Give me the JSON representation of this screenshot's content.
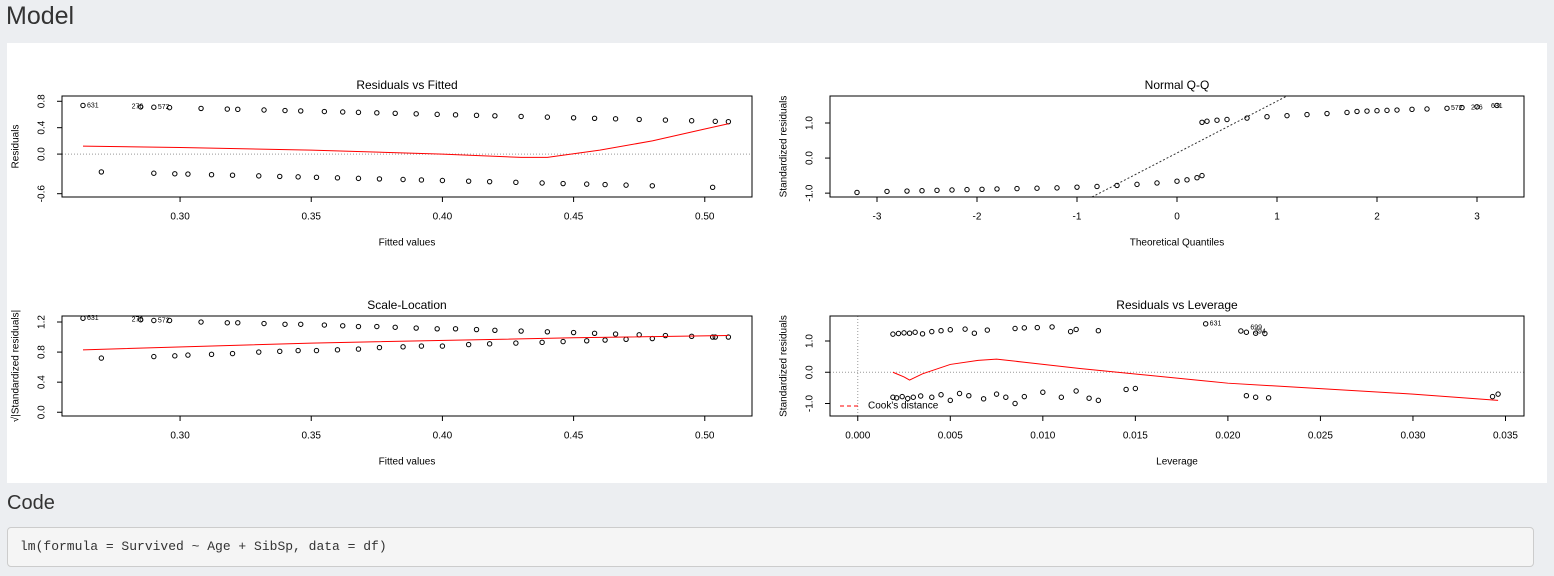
{
  "header": {
    "title": "Model"
  },
  "code_section": {
    "title": "Code",
    "code": "lm(formula = Survived ~ Age + SibSp, data = df)"
  },
  "chart_data": [
    {
      "type": "scatter",
      "title": "Residuals vs Fitted",
      "xlabel": "Fitted values",
      "ylabel": "Residuals",
      "xlim": [
        0.255,
        0.518
      ],
      "ylim": [
        -0.65,
        0.88
      ],
      "xticks": [
        {
          "value": 0.3,
          "label": "0.30"
        },
        {
          "value": 0.35,
          "label": "0.35"
        },
        {
          "value": 0.4,
          "label": "0.40"
        },
        {
          "value": 0.45,
          "label": "0.45"
        },
        {
          "value": 0.5,
          "label": "0.50"
        }
      ],
      "yticks": [
        -0.6,
        {
          "value": 0,
          "label": "0.0"
        },
        0.4,
        0.8
      ],
      "point_color": "#000000",
      "points": {
        "x": [
          0.263,
          0.285,
          0.29,
          0.296,
          0.308,
          0.318,
          0.322,
          0.332,
          0.34,
          0.346,
          0.355,
          0.362,
          0.368,
          0.375,
          0.382,
          0.39,
          0.398,
          0.405,
          0.413,
          0.42,
          0.43,
          0.44,
          0.45,
          0.458,
          0.466,
          0.475,
          0.485,
          0.495,
          0.504,
          0.509,
          0.27,
          0.29,
          0.298,
          0.303,
          0.312,
          0.32,
          0.33,
          0.338,
          0.345,
          0.352,
          0.36,
          0.368,
          0.376,
          0.385,
          0.392,
          0.4,
          0.41,
          0.418,
          0.428,
          0.438,
          0.446,
          0.455,
          0.462,
          0.47,
          0.48,
          0.503
        ],
        "y": [
          0.737,
          0.715,
          0.71,
          0.704,
          0.692,
          0.682,
          0.678,
          0.668,
          0.66,
          0.654,
          0.645,
          0.638,
          0.632,
          0.625,
          0.618,
          0.61,
          0.602,
          0.595,
          0.587,
          0.58,
          0.57,
          0.56,
          0.55,
          0.542,
          0.534,
          0.525,
          0.515,
          0.505,
          0.496,
          0.491,
          -0.27,
          -0.29,
          -0.298,
          -0.303,
          -0.312,
          -0.32,
          -0.33,
          -0.338,
          -0.345,
          -0.352,
          -0.36,
          -0.368,
          -0.376,
          -0.385,
          -0.392,
          -0.4,
          -0.41,
          -0.418,
          -0.428,
          -0.438,
          -0.446,
          -0.455,
          -0.462,
          -0.47,
          -0.48,
          -0.503
        ]
      },
      "smooth": {
        "color": "#ff0000",
        "x": [
          0.263,
          0.3,
          0.35,
          0.4,
          0.43,
          0.44,
          0.46,
          0.48,
          0.5,
          0.509
        ],
        "y": [
          0.12,
          0.1,
          0.06,
          0.0,
          -0.05,
          -0.05,
          0.06,
          0.2,
          0.38,
          0.46
        ]
      },
      "hline": 0,
      "annotations": [
        {
          "label": "631",
          "x": 0.263,
          "y": 0.737
        },
        {
          "label": "276",
          "x": 0.28,
          "y": 0.715
        },
        {
          "label": "572",
          "x": 0.29,
          "y": 0.71
        }
      ]
    },
    {
      "type": "scatter",
      "title": "Normal Q-Q",
      "xlabel": "Theoretical Quantiles",
      "ylabel": "Standardized residuals",
      "xlim": [
        -3.47,
        3.47
      ],
      "ylim": [
        -1.11,
        1.77
      ],
      "xticks": [
        -3,
        -2,
        -1,
        0,
        1,
        2,
        3
      ],
      "yticks": [
        {
          "value": -1,
          "label": "-1.0"
        },
        {
          "value": 0,
          "label": "0.0"
        },
        {
          "value": 1,
          "label": "1.0"
        }
      ],
      "point_color": "#000000",
      "points": {
        "x": [
          -3.2,
          -2.9,
          -2.7,
          -2.55,
          -2.4,
          -2.25,
          -2.1,
          -1.95,
          -1.8,
          -1.6,
          -1.4,
          -1.2,
          -1.0,
          -0.8,
          -0.6,
          -0.4,
          -0.2,
          0.0,
          0.1,
          0.2,
          0.25,
          0.25,
          0.3,
          0.4,
          0.5,
          0.7,
          0.9,
          1.1,
          1.3,
          1.5,
          1.7,
          1.8,
          1.9,
          2.0,
          2.1,
          2.2,
          2.35,
          2.5,
          2.7,
          2.85,
          3.0,
          3.2
        ],
        "y": [
          -0.98,
          -0.95,
          -0.94,
          -0.93,
          -0.92,
          -0.91,
          -0.9,
          -0.89,
          -0.88,
          -0.87,
          -0.86,
          -0.85,
          -0.83,
          -0.81,
          -0.78,
          -0.75,
          -0.71,
          -0.66,
          -0.62,
          -0.56,
          -0.5,
          1.02,
          1.05,
          1.08,
          1.1,
          1.14,
          1.18,
          1.21,
          1.24,
          1.27,
          1.3,
          1.33,
          1.34,
          1.35,
          1.36,
          1.37,
          1.39,
          1.4,
          1.42,
          1.44,
          1.46,
          1.5
        ]
      },
      "reference_line": {
        "x": [
          -0.85,
          1.1
        ],
        "y": [
          -1.11,
          1.77
        ]
      },
      "annotations": [
        {
          "label": "572",
          "x": 2.7,
          "y": 1.42
        },
        {
          "label": "276",
          "x": 2.9,
          "y": 1.44
        },
        {
          "label": "631",
          "x": 3.1,
          "y": 1.48
        }
      ]
    },
    {
      "type": "scatter",
      "title": "Scale-Location",
      "xlabel": "Fitted values",
      "ylabel": "√|Standardized residuals|",
      "xlim": [
        0.255,
        0.518
      ],
      "ylim": [
        -0.05,
        1.28
      ],
      "xticks": [
        {
          "value": 0.3,
          "label": "0.30"
        },
        {
          "value": 0.35,
          "label": "0.35"
        },
        {
          "value": 0.4,
          "label": "0.40"
        },
        {
          "value": 0.45,
          "label": "0.45"
        },
        {
          "value": 0.5,
          "label": "0.50"
        }
      ],
      "yticks": [
        {
          "value": 0,
          "label": "0.0"
        },
        0.4,
        0.8,
        1.2
      ],
      "point_color": "#000000",
      "points": {
        "x": [
          0.263,
          0.285,
          0.29,
          0.296,
          0.308,
          0.318,
          0.322,
          0.332,
          0.34,
          0.346,
          0.355,
          0.362,
          0.368,
          0.375,
          0.382,
          0.39,
          0.398,
          0.405,
          0.413,
          0.42,
          0.43,
          0.44,
          0.45,
          0.458,
          0.466,
          0.475,
          0.485,
          0.495,
          0.504,
          0.509,
          0.27,
          0.29,
          0.298,
          0.303,
          0.312,
          0.32,
          0.33,
          0.338,
          0.345,
          0.352,
          0.36,
          0.368,
          0.376,
          0.385,
          0.392,
          0.4,
          0.41,
          0.418,
          0.428,
          0.438,
          0.446,
          0.455,
          0.462,
          0.47,
          0.48,
          0.503
        ],
        "y": [
          1.25,
          1.23,
          1.22,
          1.22,
          1.2,
          1.19,
          1.19,
          1.18,
          1.17,
          1.17,
          1.16,
          1.15,
          1.14,
          1.14,
          1.13,
          1.12,
          1.11,
          1.11,
          1.1,
          1.09,
          1.08,
          1.07,
          1.06,
          1.05,
          1.04,
          1.03,
          1.02,
          1.01,
          1.0,
          1.0,
          0.72,
          0.74,
          0.75,
          0.76,
          0.77,
          0.78,
          0.8,
          0.81,
          0.82,
          0.82,
          0.83,
          0.84,
          0.86,
          0.87,
          0.88,
          0.88,
          0.9,
          0.91,
          0.92,
          0.93,
          0.94,
          0.95,
          0.96,
          0.97,
          0.98,
          1.0
        ]
      },
      "smooth": {
        "color": "#ff0000",
        "x": [
          0.263,
          0.35,
          0.45,
          0.509
        ],
        "y": [
          0.83,
          0.92,
          0.99,
          1.02
        ]
      },
      "annotations": [
        {
          "label": "631",
          "x": 0.263,
          "y": 1.25
        },
        {
          "label": "276",
          "x": 0.28,
          "y": 1.23
        },
        {
          "label": "572",
          "x": 0.29,
          "y": 1.22
        }
      ]
    },
    {
      "type": "scatter",
      "title": "Residuals vs Leverage",
      "xlabel": "Leverage",
      "ylabel": "Standardized residuals",
      "xlim": [
        -0.0015,
        0.036
      ],
      "ylim": [
        -1.4,
        1.8
      ],
      "xticks": [
        {
          "value": 0,
          "label": "0.000"
        },
        0.005,
        {
          "value": 0.01,
          "label": "0.010"
        },
        0.015,
        {
          "value": 0.02,
          "label": "0.020"
        },
        0.025,
        {
          "value": 0.03,
          "label": "0.030"
        },
        0.035
      ],
      "yticks": [
        {
          "value": -1,
          "label": "-1.0"
        },
        {
          "value": 0,
          "label": "0.0"
        },
        {
          "value": 1,
          "label": "1.0"
        }
      ],
      "point_color": "#000000",
      "points": {
        "x": [
          0.0019,
          0.0022,
          0.0025,
          0.0028,
          0.0031,
          0.0035,
          0.004,
          0.0045,
          0.005,
          0.0058,
          0.0063,
          0.007,
          0.0085,
          0.009,
          0.0097,
          0.0105,
          0.0115,
          0.0118,
          0.013,
          0.0188,
          0.0207,
          0.021,
          0.0215,
          0.022,
          0.0019,
          0.0021,
          0.0024,
          0.0027,
          0.003,
          0.0034,
          0.004,
          0.0045,
          0.005,
          0.0055,
          0.006,
          0.0068,
          0.0075,
          0.008,
          0.0085,
          0.009,
          0.01,
          0.011,
          0.0118,
          0.0125,
          0.013,
          0.0145,
          0.015,
          0.021,
          0.0215,
          0.0222,
          0.0343,
          0.0346
        ],
        "y": [
          1.22,
          1.24,
          1.26,
          1.25,
          1.28,
          1.23,
          1.3,
          1.33,
          1.36,
          1.38,
          1.25,
          1.35,
          1.4,
          1.42,
          1.43,
          1.45,
          1.3,
          1.37,
          1.33,
          1.55,
          1.32,
          1.28,
          1.25,
          1.24,
          -0.8,
          -0.82,
          -0.78,
          -0.84,
          -0.8,
          -0.76,
          -0.8,
          -0.72,
          -0.9,
          -0.68,
          -0.75,
          -0.85,
          -0.7,
          -0.8,
          -1.0,
          -0.78,
          -0.64,
          -0.8,
          -0.6,
          -0.83,
          -0.9,
          -0.55,
          -0.52,
          -0.75,
          -0.8,
          -0.82,
          -0.78,
          -0.7
        ]
      },
      "smooth": {
        "color": "#ff0000",
        "x": [
          0.0019,
          0.0025,
          0.0028,
          0.0035,
          0.005,
          0.0065,
          0.0075,
          0.009,
          0.012,
          0.02,
          0.03,
          0.0346
        ],
        "y": [
          0.0,
          -0.15,
          -0.25,
          -0.05,
          0.25,
          0.38,
          0.42,
          0.32,
          0.12,
          -0.35,
          -0.7,
          -0.9
        ]
      },
      "hline": 0,
      "vline": 0,
      "annotations": [
        {
          "label": "631",
          "x": 0.0188,
          "y": 1.55
        },
        {
          "label": "699",
          "x": 0.021,
          "y": 1.42
        },
        {
          "label": "394",
          "x": 0.0212,
          "y": 1.3
        }
      ],
      "legend": {
        "position": "bottomleft",
        "entries": [
          {
            "label": "Cook's distance",
            "color": "#ff0000",
            "dashed": true
          }
        ]
      }
    }
  ]
}
